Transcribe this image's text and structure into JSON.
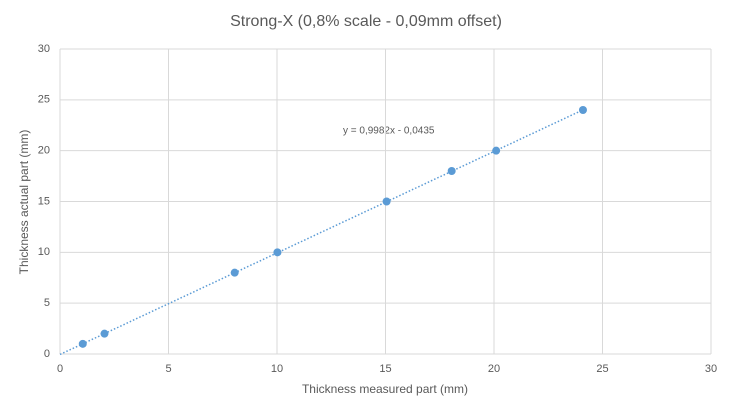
{
  "chart_data": {
    "type": "scatter",
    "title": "Strong-X (0,8% scale - 0,09mm offset)",
    "x_label": "Thickness measured part (mm)",
    "y_label": "Thickness actual part (mm)",
    "series": [
      {
        "name": "Strong-X",
        "color": "#5b9bd5",
        "x": [
          1.05,
          2.05,
          8.05,
          10.02,
          15.05,
          18.05,
          20.1,
          24.1
        ],
        "values": [
          1,
          2,
          8,
          10,
          15,
          18,
          20,
          24
        ]
      }
    ],
    "trendline": {
      "slope": 0.9982,
      "intercept": -0.0435,
      "label": "y = 0,9982x - 0,0435"
    },
    "xlim": [
      0,
      30
    ],
    "xticks": [
      0,
      5,
      10,
      15,
      20,
      25,
      30
    ],
    "ylim": [
      0,
      30
    ],
    "yticks": [
      0,
      5,
      10,
      15,
      20,
      25,
      30
    ],
    "grid": true
  }
}
